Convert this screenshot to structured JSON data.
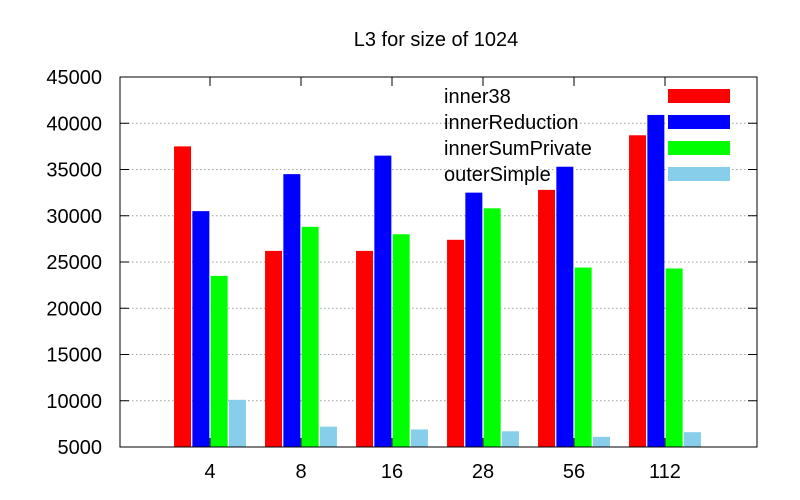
{
  "chart_data": {
    "type": "bar",
    "title": "L3 for size of 1024",
    "xlabel": "",
    "ylabel": "",
    "ylim": [
      5000,
      45000
    ],
    "yticks": [
      5000,
      10000,
      15000,
      20000,
      25000,
      30000,
      35000,
      40000,
      45000
    ],
    "categories": [
      "4",
      "8",
      "16",
      "28",
      "56",
      "112"
    ],
    "grid": "horizontal-dotted",
    "legend_position": "top-right",
    "series": [
      {
        "name": "inner38",
        "color": "#ff0000",
        "values": [
          37500,
          26200,
          26200,
          27400,
          32800,
          38700
        ]
      },
      {
        "name": "innerReduction",
        "color": "#0000ff",
        "values": [
          30500,
          34500,
          36500,
          32500,
          35300,
          40900
        ]
      },
      {
        "name": "innerSumPrivate",
        "color": "#00ff00",
        "values": [
          23500,
          28800,
          28000,
          30800,
          24400,
          24300
        ]
      },
      {
        "name": "outerSimple",
        "color": "#87ceeb",
        "values": [
          10100,
          7200,
          6900,
          6700,
          6100,
          6600
        ]
      }
    ]
  }
}
